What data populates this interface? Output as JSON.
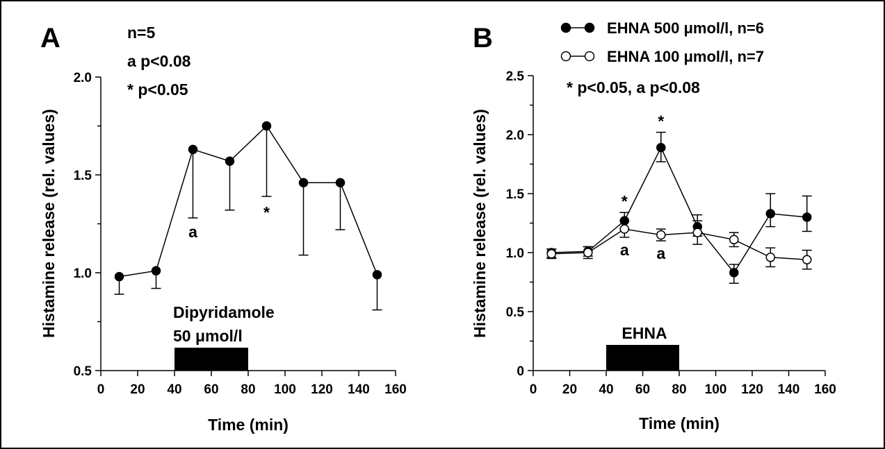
{
  "chart_data": [
    {
      "panel": "A",
      "type": "line",
      "xlabel": "Time (min)",
      "ylabel": "Histamine release (rel. values)",
      "xlim": [
        0,
        160
      ],
      "ylim": [
        0.5,
        2.0
      ],
      "xticks": [
        0,
        20,
        40,
        60,
        80,
        100,
        120,
        140,
        160
      ],
      "yticks": [
        0.5,
        1.0,
        1.5,
        2.0
      ],
      "ytick_labels": [
        "0.5",
        "1.0",
        "1.5",
        "2.0"
      ],
      "annotations": [
        "n=5",
        "a p<0.08",
        "* p<0.05"
      ],
      "treatment": {
        "label_line1": "Dipyridamole",
        "label_line2": "50 μmol/l",
        "start": 40,
        "end": 80
      },
      "series": [
        {
          "name": "Dipyridamole 50 μmol/l",
          "marker": "filled",
          "x": [
            10,
            30,
            50,
            70,
            90,
            110,
            130,
            150
          ],
          "values": [
            0.98,
            1.01,
            1.63,
            1.57,
            1.75,
            1.46,
            1.46,
            0.99
          ],
          "error_down": [
            0.09,
            0.09,
            0.35,
            0.25,
            0.36,
            0.37,
            0.24,
            0.18
          ],
          "error_up": [
            0,
            0,
            0,
            0,
            0,
            0,
            0,
            0
          ],
          "point_labels": [
            {
              "x": 50,
              "text": "a",
              "pos": "below-bar"
            },
            {
              "x": 90,
              "text": "*",
              "pos": "below-bar"
            }
          ]
        }
      ]
    },
    {
      "panel": "B",
      "type": "line",
      "xlabel": "Time (min)",
      "ylabel": "Histamine release (rel. values)",
      "xlim": [
        0,
        160
      ],
      "ylim": [
        0,
        2.5
      ],
      "xticks": [
        0,
        20,
        40,
        60,
        80,
        100,
        120,
        140,
        160
      ],
      "yticks": [
        0,
        0.5,
        1.0,
        1.5,
        2.0,
        2.5
      ],
      "ytick_labels": [
        "0",
        "0.5",
        "1.0",
        "1.5",
        "2.0",
        "2.5"
      ],
      "annotations": [
        "* p<0.05, a p<0.08"
      ],
      "treatment": {
        "label_line1": "EHNA",
        "start": 40,
        "end": 80
      },
      "series": [
        {
          "name": "EHNA 500 μmol/l, n=6",
          "marker": "filled",
          "x": [
            10,
            30,
            50,
            70,
            90,
            110,
            130,
            150
          ],
          "values": [
            1.0,
            1.01,
            1.27,
            1.89,
            1.22,
            0.83,
            1.33,
            1.3
          ],
          "error_down": [
            0.04,
            0.04,
            0.07,
            0.12,
            0.08,
            0.09,
            0.11,
            0.12
          ],
          "error_up": [
            0.03,
            0.04,
            0.07,
            0.13,
            0.1,
            0.07,
            0.17,
            0.18
          ],
          "point_labels": [
            {
              "x": 50,
              "text": "*",
              "pos": "above"
            },
            {
              "x": 70,
              "text": "*",
              "pos": "above"
            }
          ]
        },
        {
          "name": "EHNA 100 μmol/l, n=7",
          "marker": "open",
          "x": [
            10,
            30,
            50,
            70,
            90,
            110,
            130,
            150
          ],
          "values": [
            0.99,
            1.0,
            1.2,
            1.15,
            1.17,
            1.11,
            0.96,
            0.94
          ],
          "error_down": [
            0.04,
            0.05,
            0.07,
            0.05,
            0.1,
            0.06,
            0.08,
            0.08
          ],
          "error_up": [
            0.04,
            0.05,
            0.07,
            0.05,
            0.1,
            0.06,
            0.08,
            0.08
          ],
          "point_labels": [
            {
              "x": 50,
              "text": "a",
              "pos": "below"
            },
            {
              "x": 70,
              "text": "a",
              "pos": "below"
            }
          ]
        }
      ]
    }
  ]
}
